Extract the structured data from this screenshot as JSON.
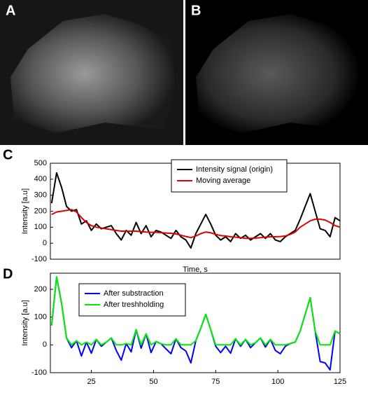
{
  "panel_labels": [
    "A",
    "B",
    "C",
    "D"
  ],
  "chart_data": [
    {
      "type": "line",
      "y_label": "Intensity [a.u]",
      "x_label": "Time, s",
      "xlim": [
        8.5,
        125
      ],
      "ylim": [
        -100,
        500
      ],
      "yticks": [
        -100,
        0,
        100,
        200,
        300,
        400,
        500
      ],
      "x": [
        9,
        11,
        13,
        15,
        17,
        19,
        21,
        23,
        25,
        27,
        29,
        31,
        33,
        35,
        37,
        39,
        41,
        43,
        45,
        47,
        49,
        51,
        53,
        55,
        57,
        59,
        61,
        63,
        65,
        67,
        69,
        71,
        73,
        75,
        77,
        79,
        81,
        83,
        85,
        87,
        89,
        91,
        93,
        95,
        97,
        99,
        101,
        103,
        105,
        107,
        109,
        111,
        113,
        115,
        117,
        119,
        121,
        123,
        125
      ],
      "series": [
        {
          "name": "Intensity signal (origin)",
          "color": "#000000",
          "values": [
            250,
            440,
            350,
            230,
            200,
            210,
            120,
            140,
            80,
            120,
            90,
            100,
            110,
            60,
            20,
            80,
            50,
            130,
            60,
            110,
            40,
            80,
            70,
            50,
            30,
            80,
            40,
            20,
            -30,
            60,
            120,
            180,
            120,
            50,
            20,
            40,
            10,
            60,
            30,
            50,
            20,
            40,
            60,
            30,
            60,
            20,
            10,
            40,
            60,
            80,
            150,
            230,
            310,
            200,
            90,
            80,
            40,
            160,
            140
          ]
        },
        {
          "name": "Moving average",
          "color": "#e00000",
          "values": [
            180,
            195,
            200,
            205,
            210,
            195,
            160,
            130,
            110,
            100,
            95,
            90,
            85,
            80,
            75,
            75,
            75,
            75,
            72,
            70,
            68,
            68,
            66,
            64,
            62,
            58,
            50,
            42,
            35,
            45,
            60,
            70,
            65,
            55,
            48,
            45,
            40,
            38,
            35,
            30,
            30,
            32,
            35,
            38,
            40,
            40,
            42,
            45,
            55,
            70,
            100,
            120,
            140,
            150,
            150,
            145,
            130,
            110,
            100
          ]
        }
      ]
    },
    {
      "type": "line",
      "y_label": "Intensity [a.u]",
      "xlim": [
        8.5,
        125
      ],
      "ylim": [
        -100,
        258
      ],
      "yticks": [
        -100,
        0,
        100,
        200
      ],
      "xticks": [
        25,
        50,
        75,
        100,
        125
      ],
      "x": [
        9,
        11,
        13,
        15,
        17,
        19,
        21,
        23,
        25,
        27,
        29,
        31,
        33,
        35,
        37,
        39,
        41,
        43,
        45,
        47,
        49,
        51,
        53,
        55,
        57,
        59,
        61,
        63,
        65,
        67,
        69,
        71,
        73,
        75,
        77,
        79,
        81,
        83,
        85,
        87,
        89,
        91,
        93,
        95,
        97,
        99,
        101,
        103,
        105,
        107,
        109,
        111,
        113,
        115,
        117,
        119,
        121,
        123,
        125
      ],
      "series": [
        {
          "name": "After substraction",
          "color": "#0000ff",
          "values": [
            70,
            245,
            150,
            25,
            -10,
            15,
            -40,
            10,
            -30,
            20,
            -5,
            10,
            25,
            -20,
            -55,
            5,
            -25,
            55,
            -12,
            40,
            -28,
            12,
            4,
            -14,
            -32,
            22,
            -10,
            -22,
            -65,
            15,
            60,
            110,
            55,
            -5,
            -28,
            -5,
            -30,
            22,
            -5,
            20,
            -10,
            8,
            25,
            -8,
            20,
            -20,
            -32,
            -5,
            5,
            10,
            50,
            110,
            170,
            50,
            -60,
            -65,
            -90,
            50,
            40
          ]
        },
        {
          "name": "After treshholding",
          "color": "#00ee00",
          "values": [
            70,
            245,
            150,
            25,
            0,
            15,
            0,
            10,
            0,
            20,
            0,
            10,
            25,
            0,
            0,
            5,
            0,
            55,
            0,
            40,
            0,
            12,
            4,
            0,
            0,
            22,
            0,
            0,
            0,
            15,
            60,
            110,
            55,
            0,
            0,
            0,
            0,
            22,
            0,
            20,
            0,
            8,
            25,
            0,
            20,
            0,
            0,
            0,
            5,
            10,
            50,
            110,
            170,
            50,
            0,
            0,
            0,
            50,
            40
          ]
        }
      ]
    }
  ]
}
